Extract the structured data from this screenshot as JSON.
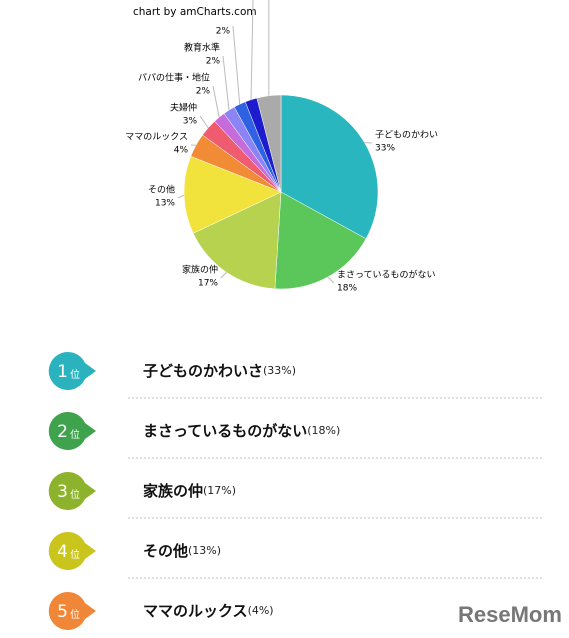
{
  "credit": "chart by amCharts.com",
  "chart_data": {
    "type": "pie",
    "categories": [
      "子どものかわい",
      "まさっているものがない",
      "家族の仲",
      "その他",
      "ママのルックス",
      "夫婦仲",
      "パパの仕事・地位",
      "教育水準",
      null,
      null,
      null
    ],
    "values": [
      33,
      18,
      17,
      13,
      4,
      3,
      2,
      2,
      2,
      2,
      4
    ],
    "value_labels": [
      "33%",
      "18%",
      "17%",
      "13%",
      "4%",
      "3%",
      "2%",
      "2%",
      "2%",
      null,
      null
    ],
    "colors": [
      "#29b6be",
      "#5bc75b",
      "#b6d24f",
      "#f1e33c",
      "#f28b36",
      "#ef5b6f",
      "#c56bdb",
      "#8c84f5",
      "#2e62e3",
      "#1c1cce",
      "#aaaaaa"
    ]
  },
  "ranking": {
    "rank_suffix": "位",
    "items": [
      {
        "rank": 1,
        "label": "子どものかわいさ",
        "value": "(33%)",
        "color": "#2ab3bf"
      },
      {
        "rank": 2,
        "label": "まさっているものがない",
        "value": "(18%)",
        "color": "#3fa34d"
      },
      {
        "rank": 3,
        "label": "家族の仲",
        "value": "(17%)",
        "color": "#8db22b"
      },
      {
        "rank": 4,
        "label": "その他",
        "value": "(13%)",
        "color": "#c9c51d"
      },
      {
        "rank": 5,
        "label": "ママのルックス",
        "value": "(4%)",
        "color": "#f08738"
      }
    ]
  },
  "logo": "ReseMom"
}
